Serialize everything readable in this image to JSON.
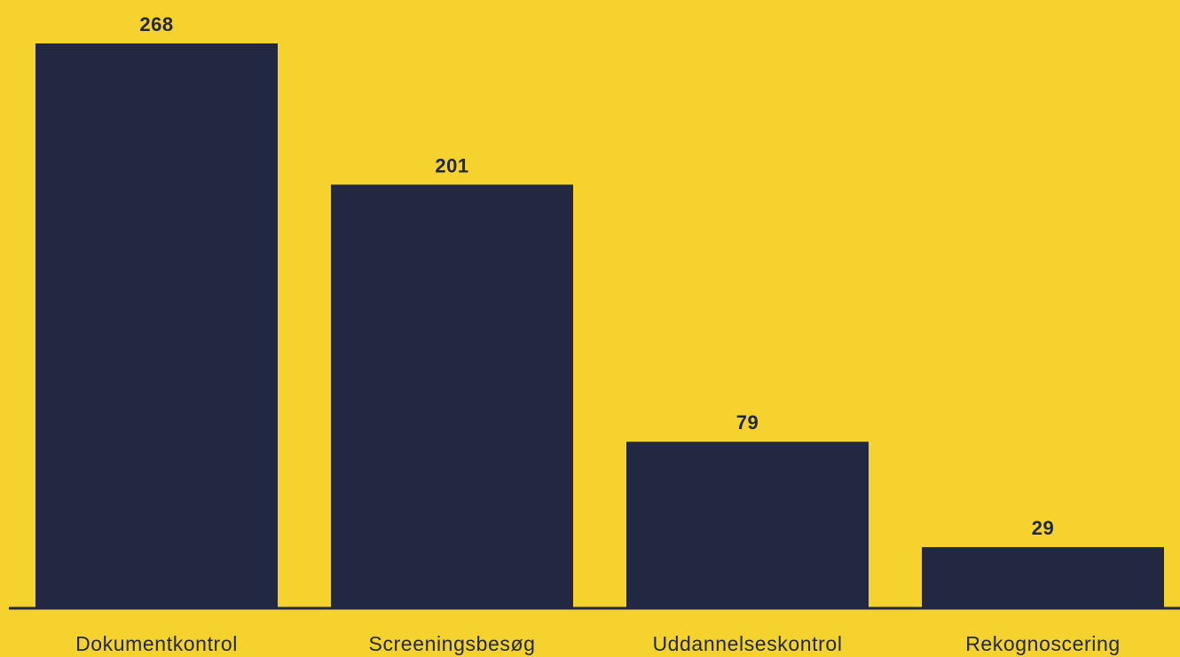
{
  "colors": {
    "background": "#f5d22d",
    "bar": "#222842",
    "text": "#222842",
    "axis": "#222842"
  },
  "chart_data": {
    "type": "bar",
    "categories": [
      "Dokumentkontrol",
      "Screeningsbesøg",
      "Uddannelseskontrol",
      "Rekognoscering"
    ],
    "values": [
      268,
      201,
      79,
      29
    ],
    "title": "",
    "xlabel": "",
    "ylabel": "",
    "ylim": [
      0,
      268
    ],
    "grid": false,
    "legend": "none",
    "data_labels": [
      "268",
      "201",
      "79",
      "29"
    ]
  }
}
